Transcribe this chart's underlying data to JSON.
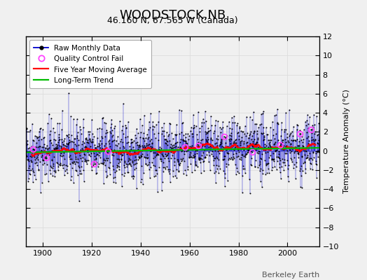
{
  "title": "WOODSTOCK,NB",
  "subtitle": "46.160 N, 67.565 W (Canada)",
  "ylabel": "Temperature Anomaly (°C)",
  "credit": "Berkeley Earth",
  "xmin": 1893,
  "xmax": 2013,
  "ymin": -10,
  "ymax": 12,
  "yticks": [
    -10,
    -8,
    -6,
    -4,
    -2,
    0,
    2,
    4,
    6,
    8,
    10,
    12
  ],
  "xticks": [
    1900,
    1920,
    1940,
    1960,
    1980,
    2000
  ],
  "raw_line_color": "#0000cc",
  "dot_color": "#000000",
  "moving_avg_color": "#ff0000",
  "trend_color": "#00bb00",
  "qc_fail_color": "#ff44ff",
  "background_color": "#f0f0f0",
  "grid_color": "#dddddd",
  "seed": 42,
  "n_months": 1452,
  "start_year": 1893.0,
  "noise_std": 1.6,
  "trend_slope": 0.004,
  "trend_intercept": -0.15,
  "moving_avg_window": 60,
  "qc_fail_years": [
    1896.0,
    1901.5,
    1921.0,
    1926.5,
    1958.0,
    1963.5,
    1974.0,
    1985.5,
    1997.0,
    2005.0,
    2009.5
  ]
}
